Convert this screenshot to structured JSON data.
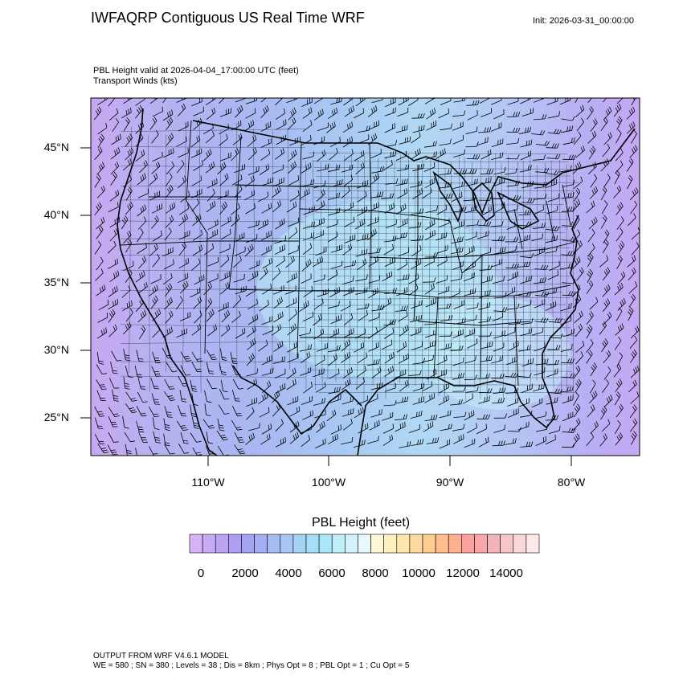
{
  "header": {
    "title": "IWFAQRP Contiguous US Real Time WRF",
    "init": "Init: 2026-03-31_00:00:00"
  },
  "plot": {
    "subtitle_line1": "PBL Height valid at 2026-04-04_17:00:00 UTC   (feet)",
    "subtitle_line2": "Transport Winds   (kts)",
    "lat_labels": [
      "45°N",
      "40°N",
      "35°N",
      "30°N",
      "25°N"
    ],
    "lon_labels": [
      "110°W",
      "100°W",
      "90°W",
      "80°W"
    ]
  },
  "colorbar": {
    "title": "PBL Height  (feet)",
    "tick_labels": [
      "0",
      "2000",
      "4000",
      "6000",
      "8000",
      "10000",
      "12000",
      "14000"
    ],
    "colors": [
      "#d6b4f7",
      "#c9aaf6",
      "#bca4f5",
      "#ae9ef4",
      "#a4a4f3",
      "#a4b0f3",
      "#a8bcf4",
      "#a8c6f5",
      "#a6d2f6",
      "#a4dff7",
      "#a8e8f8",
      "#bfeef9",
      "#d4f2fb",
      "#e8f8fc",
      "#fff8d6",
      "#fff0c0",
      "#ffe6ae",
      "#ffda9e",
      "#ffcc92",
      "#ffbe8c",
      "#ffb08c",
      "#ffa0a0",
      "#f8a6aa",
      "#f2b4b8",
      "#f6c6ca",
      "#fad8da",
      "#fde8ea"
    ]
  },
  "footer": {
    "line1": "OUTPUT FROM WRF V4.6.1 MODEL",
    "line2": "WE = 580 ; SN = 380 ; Levels = 38 ; Dis = 8km ; Phys Opt = 8 ; PBL Opt = 1 ; Cu Opt = 5"
  }
}
